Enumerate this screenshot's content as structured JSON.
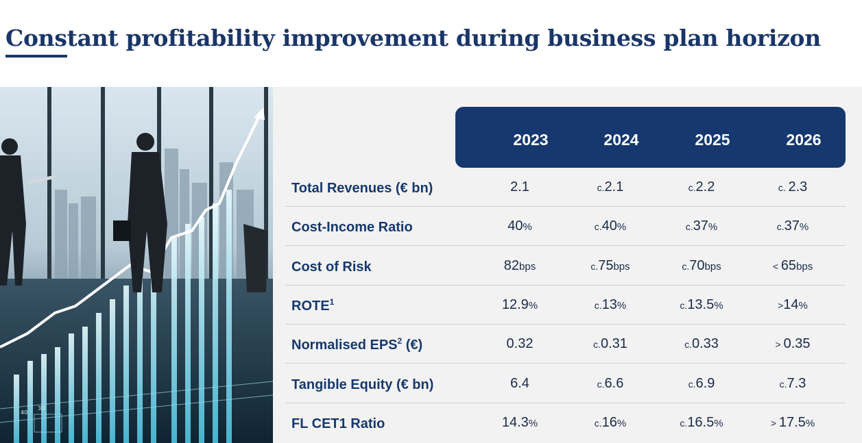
{
  "title": "Constant profitability improvement during business plan horizon",
  "image": {
    "description_icon": "business-growth-photo",
    "tick_labels": [
      "40",
      "30"
    ]
  },
  "years": [
    "2023",
    "2024",
    "2025",
    "2026"
  ],
  "rows": [
    {
      "label": "Total Revenues (€ bn)",
      "sup": "",
      "label_suffix": "",
      "cells": [
        {
          "pre": "",
          "val": "2.1",
          "suf": ""
        },
        {
          "pre": "c.",
          "val": "2.1",
          "suf": ""
        },
        {
          "pre": "c.",
          "val": "2.2",
          "suf": ""
        },
        {
          "pre": "c. ",
          "val": "2.3",
          "suf": ""
        }
      ]
    },
    {
      "label": "Cost-Income Ratio",
      "sup": "",
      "label_suffix": "",
      "cells": [
        {
          "pre": "",
          "val": "40",
          "suf": "%"
        },
        {
          "pre": "c.",
          "val": "40",
          "suf": "%"
        },
        {
          "pre": "c.",
          "val": "37",
          "suf": "%"
        },
        {
          "pre": "c.",
          "val": "37",
          "suf": "%"
        }
      ]
    },
    {
      "label": "Cost of Risk",
      "sup": "",
      "label_suffix": "",
      "cells": [
        {
          "pre": "",
          "val": "82",
          "suf": "bps"
        },
        {
          "pre": "c.",
          "val": "75",
          "suf": "bps"
        },
        {
          "pre": "c.",
          "val": "70",
          "suf": "bps"
        },
        {
          "pre": "< ",
          "val": "65",
          "suf": "bps"
        }
      ]
    },
    {
      "label": "ROTE",
      "sup": "1",
      "label_suffix": "",
      "cells": [
        {
          "pre": "",
          "val": "12.9",
          "suf": "%"
        },
        {
          "pre": "c.",
          "val": "13",
          "suf": "%"
        },
        {
          "pre": "c.",
          "val": "13.5",
          "suf": "%"
        },
        {
          "pre": ">",
          "val": "14",
          "suf": "%"
        }
      ]
    },
    {
      "label": "Normalised EPS",
      "sup": "2",
      "label_suffix": " (€)",
      "cells": [
        {
          "pre": "",
          "val": "0.32",
          "suf": ""
        },
        {
          "pre": "c.",
          "val": "0.31",
          "suf": ""
        },
        {
          "pre": "c.",
          "val": "0.33",
          "suf": ""
        },
        {
          "pre": "> ",
          "val": "0.35",
          "suf": ""
        }
      ]
    },
    {
      "label": "Tangible Equity (€ bn)",
      "sup": "",
      "label_suffix": "",
      "cells": [
        {
          "pre": "",
          "val": "6.4",
          "suf": ""
        },
        {
          "pre": "c.",
          "val": "6.6",
          "suf": ""
        },
        {
          "pre": "c.",
          "val": "6.9",
          "suf": ""
        },
        {
          "pre": "c.",
          "val": "7.3",
          "suf": ""
        }
      ]
    },
    {
      "label": "FL CET1 Ratio",
      "sup": "",
      "label_suffix": "",
      "cells": [
        {
          "pre": "",
          "val": "14.3",
          "suf": "%"
        },
        {
          "pre": "c.",
          "val": "16",
          "suf": "%"
        },
        {
          "pre": "c.",
          "val": "16.5",
          "suf": "%"
        },
        {
          "pre": "> ",
          "val": "17.5",
          "suf": "%"
        }
      ]
    }
  ]
}
